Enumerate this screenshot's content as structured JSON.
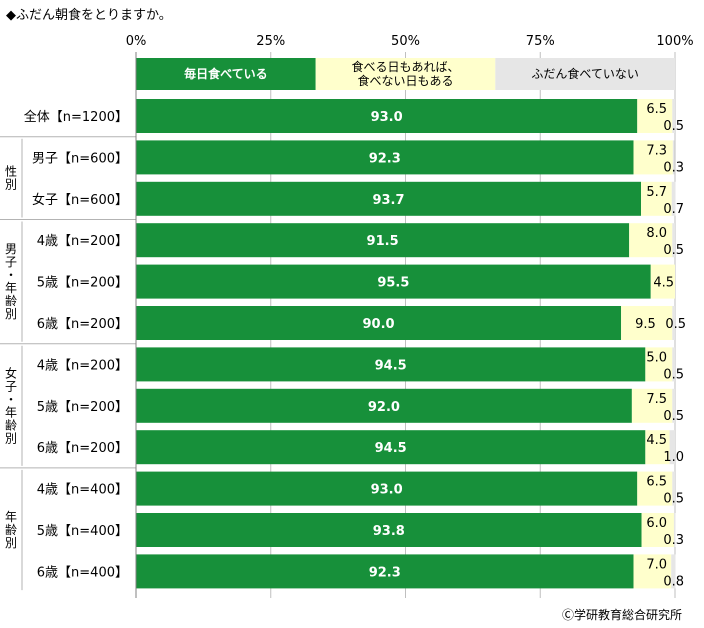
{
  "title": "◆ふだん朝食をとりますか。",
  "credit": "Ⓒ学研教育総合研究所",
  "colors": {
    "daily": "#17903a",
    "sometimes": "#ffffcc",
    "rarely": "#e6e6e6",
    "grid": "#bfbfbf",
    "divider": "#b3b3b3"
  },
  "chart_data": {
    "type": "bar",
    "orientation": "horizontal",
    "stacked": true,
    "xlim": [
      0,
      100
    ],
    "xticks": [
      "0%",
      "25%",
      "50%",
      "75%",
      "100%"
    ],
    "legend": [
      {
        "name": "毎日食べている",
        "lines": [
          "毎日食べている"
        ]
      },
      {
        "name": "食べる日もあれば、食べない日もある",
        "lines": [
          "食べる日もあれば、",
          "食べない日もある"
        ]
      },
      {
        "name": "ふだん食べていない",
        "lines": [
          "ふだん食べていない"
        ]
      }
    ],
    "groups": [
      {
        "label": "",
        "rows": [
          0
        ]
      },
      {
        "label": "性別",
        "rows": [
          1,
          2
        ]
      },
      {
        "label": "男子・年齢別",
        "rows": [
          3,
          4,
          5
        ]
      },
      {
        "label": "女子・年齢別",
        "rows": [
          6,
          7,
          8
        ]
      },
      {
        "label": "年齢別",
        "rows": [
          9,
          10,
          11
        ]
      }
    ],
    "categories": [
      "全体【n=1200】",
      "男子【n=600】",
      "女子【n=600】",
      "4歳【n=200】",
      "5歳【n=200】",
      "6歳【n=200】",
      "4歳【n=200】",
      "5歳【n=200】",
      "6歳【n=200】",
      "4歳【n=400】",
      "5歳【n=400】",
      "6歳【n=400】"
    ],
    "series": [
      {
        "name": "毎日食べている",
        "values": [
          93.0,
          92.3,
          93.7,
          91.5,
          95.5,
          90.0,
          94.5,
          92.0,
          94.5,
          93.0,
          93.8,
          92.3
        ],
        "labels": [
          "93.0",
          "92.3",
          "93.7",
          "91.5",
          "95.5",
          "90.0",
          "94.5",
          "92.0",
          "94.5",
          "93.0",
          "93.8",
          "92.3"
        ]
      },
      {
        "name": "食べる日もあれば、食べない日もある",
        "values": [
          6.5,
          7.3,
          5.7,
          8.0,
          4.5,
          9.5,
          5.0,
          7.5,
          4.5,
          6.5,
          6.0,
          7.0
        ],
        "labels": [
          "6.5",
          "7.3",
          "5.7",
          "8.0",
          "4.5",
          "9.5",
          "5.0",
          "7.5",
          "4.5",
          "6.5",
          "6.0",
          "7.0"
        ]
      },
      {
        "name": "ふだん食べていない",
        "values": [
          0.5,
          0.3,
          0.7,
          0.5,
          0.0,
          0.5,
          0.5,
          0.5,
          1.0,
          0.5,
          0.3,
          0.8
        ],
        "labels": [
          "0.5",
          "0.3",
          "0.7",
          "0.5",
          "",
          "0.5",
          "0.5",
          "0.5",
          "1.0",
          "0.5",
          "0.3",
          "0.8"
        ]
      }
    ]
  }
}
